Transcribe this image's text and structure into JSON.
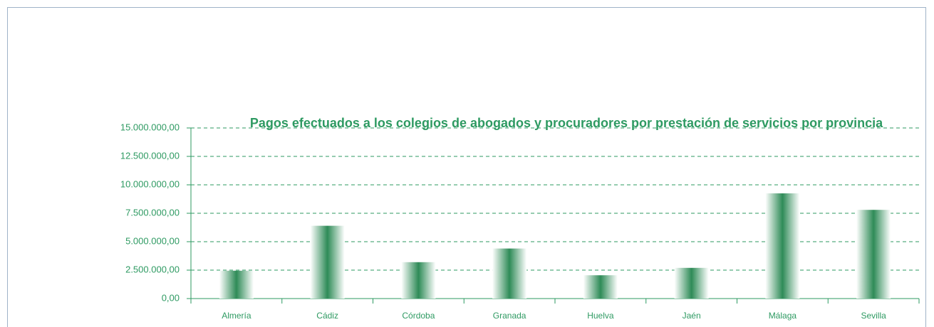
{
  "chart_data": {
    "type": "bar",
    "title": "Pagos efectuados a los colegios de abogados y procuradores por prestación de servicios por provincia",
    "categories": [
      "Almería",
      "Cádiz",
      "Córdoba",
      "Granada",
      "Huelva",
      "Jaén",
      "Málaga",
      "Sevilla"
    ],
    "values": [
      2450000,
      6400000,
      3200000,
      4400000,
      2050000,
      2700000,
      9250000,
      7800000
    ],
    "color": "#2e8b57",
    "ylim": [
      0,
      15000000
    ],
    "yticks": [
      {
        "value": 0,
        "label": "0,00"
      },
      {
        "value": 2500000,
        "label": "2.500.000,00"
      },
      {
        "value": 5000000,
        "label": "5.000.000,00"
      },
      {
        "value": 7500000,
        "label": "7.500.000,00"
      },
      {
        "value": 10000000,
        "label": "10.000.000,00"
      },
      {
        "value": 12500000,
        "label": "12.500.000,00"
      },
      {
        "value": 15000000,
        "label": "15.000.000,00"
      }
    ],
    "grid": true
  }
}
